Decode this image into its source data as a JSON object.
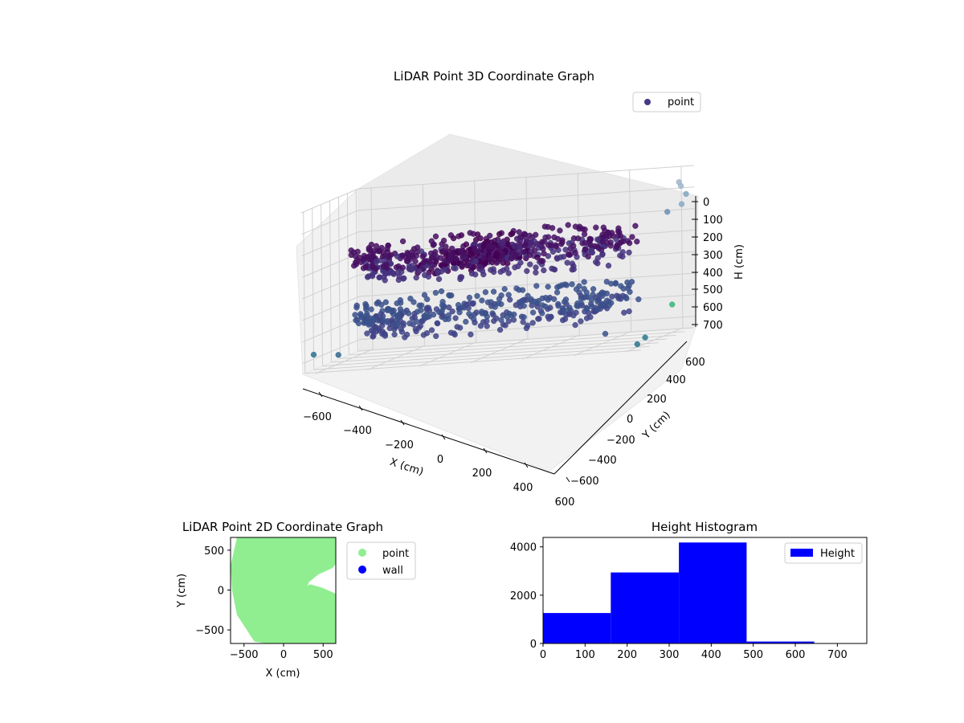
{
  "figure": {
    "background": "#ffffff"
  },
  "chart_data": [
    {
      "id": "chart3d",
      "type": "scatter",
      "subtype": "3d",
      "title": "LiDAR Point 3D Coordinate Graph",
      "xlabel": "X (cm)",
      "ylabel": "Y (cm)",
      "zlabel": "H (cm)",
      "xticks": [
        "−600",
        "−400",
        "−200",
        "0",
        "200",
        "400",
        "600"
      ],
      "yticks": [
        "−600",
        "−400",
        "−200",
        "0",
        "200",
        "400",
        "600"
      ],
      "zticks": [
        "0",
        "100",
        "200",
        "300",
        "400",
        "500",
        "600",
        "700"
      ],
      "xlim": [
        -650,
        650
      ],
      "ylim": [
        -650,
        650
      ],
      "zlim": [
        750,
        0
      ],
      "z_axis_inverted": true,
      "grid": true,
      "legend": {
        "position": "top-right",
        "entries": [
          {
            "name": "point",
            "color": "#443983"
          }
        ]
      },
      "colormap": "viridis",
      "series": [
        {
          "name": "point",
          "description": "dense ring-shaped LiDAR scan: upper ring of dark purple points near H≈250–350 (radius≈500) and lower ring near H≈500–600, with sparse outliers",
          "rings": [
            {
              "radius": 520,
              "h": 270,
              "count": 260,
              "color": "#471063"
            },
            {
              "radius": 470,
              "h": 330,
              "count": 220,
              "color": "#46327e"
            },
            {
              "radius": 510,
              "h": 530,
              "count": 240,
              "color": "#3b518b"
            },
            {
              "radius": 470,
              "h": 590,
              "count": 200,
              "color": "#414487"
            }
          ],
          "core_points": [
            {
              "x": -100,
              "y": 120,
              "h": 300,
              "color": "#440154"
            },
            {
              "x": 0,
              "y": 60,
              "h": 320,
              "color": "#440154"
            },
            {
              "x": -150,
              "y": 0,
              "h": 330,
              "color": "#481a6c"
            },
            {
              "x": -50,
              "y": -60,
              "h": 310,
              "color": "#440154"
            },
            {
              "x": 60,
              "y": 150,
              "h": 280,
              "color": "#481a6c"
            },
            {
              "x": -200,
              "y": 80,
              "h": 340,
              "color": "#440154"
            },
            {
              "x": 20,
              "y": 0,
              "h": 290,
              "color": "#482878"
            },
            {
              "x": -80,
              "y": 200,
              "h": 260,
              "color": "#440154"
            }
          ],
          "outliers": [
            {
              "x": 620,
              "y": 480,
              "h": 60,
              "color": "#9fb4c8"
            },
            {
              "x": 640,
              "y": 520,
              "h": 120,
              "color": "#7fa6c0"
            },
            {
              "x": 560,
              "y": 560,
              "h": 200,
              "color": "#6a8fb5"
            },
            {
              "x": 660,
              "y": 300,
              "h": 150,
              "color": "#86aac6"
            },
            {
              "x": 600,
              "y": 640,
              "h": 90,
              "color": "#9db7cc"
            },
            {
              "x": -650,
              "y": -400,
              "h": 680,
              "color": "#2c728e"
            },
            {
              "x": -580,
              "y": -250,
              "h": 700,
              "color": "#31688e"
            },
            {
              "x": 640,
              "y": -620,
              "h": 720,
              "color": "#2c728e"
            },
            {
              "x": 650,
              "y": -500,
              "h": 700,
              "color": "#287c8e"
            },
            {
              "x": 650,
              "y": 120,
              "h": 600,
              "color": "#35b779"
            },
            {
              "x": 520,
              "y": -640,
              "h": 660,
              "color": "#3b528b"
            }
          ]
        }
      ]
    },
    {
      "id": "chart2d",
      "type": "scatter",
      "title": "LiDAR Point 2D Coordinate Graph",
      "xlabel": "X (cm)",
      "ylabel": "Y (cm)",
      "xticks": [
        "−500",
        "0",
        "500"
      ],
      "yticks": [
        "−500",
        "0",
        "500"
      ],
      "xlim": [
        -670,
        660
      ],
      "ylim": [
        -670,
        660
      ],
      "grid": false,
      "legend": {
        "position": "outside-right",
        "entries": [
          {
            "name": "point",
            "color": "#90ee90"
          },
          {
            "name": "wall",
            "color": "#0000ff"
          }
        ]
      },
      "series": [
        {
          "name": "point",
          "color": "#90ee90",
          "outline": [
            [
              -560,
              650
            ],
            [
              -640,
              300
            ],
            [
              -620,
              0
            ],
            [
              -560,
              -300
            ],
            [
              -350,
              -620
            ],
            [
              0,
              -670
            ],
            [
              370,
              -670
            ],
            [
              660,
              -670
            ],
            [
              660,
              -80
            ],
            [
              480,
              0
            ],
            [
              340,
              40
            ],
            [
              230,
              -20
            ],
            [
              300,
              120
            ],
            [
              420,
              220
            ],
            [
              600,
              300
            ],
            [
              660,
              380
            ],
            [
              660,
              660
            ],
            [
              -560,
              660
            ]
          ]
        },
        {
          "name": "wall",
          "color": "#0000ff",
          "points": []
        }
      ]
    },
    {
      "id": "histogram",
      "type": "bar",
      "subtype": "histogram",
      "title": "Height Histogram",
      "xlabel": "",
      "ylabel": "",
      "bin_edges": [
        0,
        161,
        323,
        484,
        645,
        806
      ],
      "values": [
        1260,
        2940,
        4180,
        80,
        0
      ],
      "xticks": [
        "0",
        "100",
        "200",
        "300",
        "400",
        "500",
        "600",
        "700"
      ],
      "yticks": [
        "0",
        "2000",
        "4000"
      ],
      "xlim": [
        0,
        770
      ],
      "ylim": [
        0,
        4390
      ],
      "color": "#0000ff",
      "grid": false,
      "legend": {
        "position": "top-right",
        "entries": [
          {
            "name": "Height",
            "color": "#0000ff"
          }
        ]
      }
    }
  ]
}
